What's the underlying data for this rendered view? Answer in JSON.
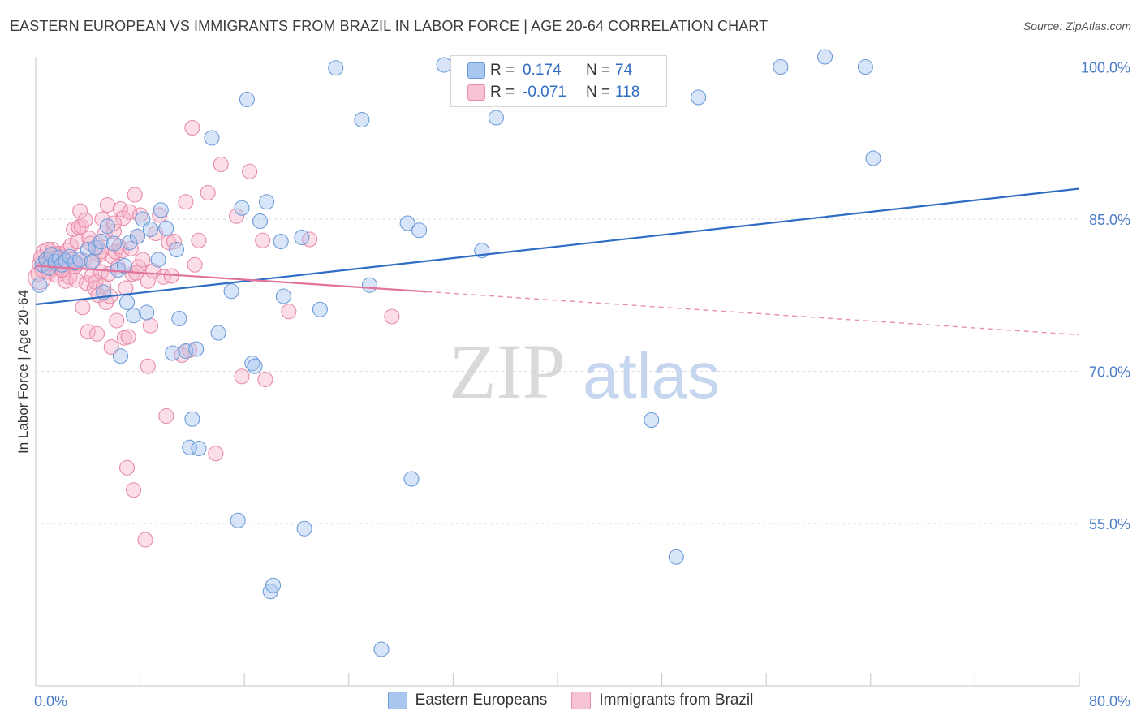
{
  "title": "EASTERN EUROPEAN VS IMMIGRANTS FROM BRAZIL IN LABOR FORCE | AGE 20-64 CORRELATION CHART",
  "source": "Source: ZipAtlas.com",
  "watermark": {
    "zip": "ZIP",
    "atlas": "atlas"
  },
  "legend": {
    "series1": {
      "r_label": "R =",
      "r_value": "0.174",
      "n_label": "N =",
      "n_value": "74"
    },
    "series2": {
      "r_label": "R =",
      "r_value": "-0.071",
      "n_label": "N =",
      "n_value": "118"
    }
  },
  "colors": {
    "blue_fill": "#a9c6ef",
    "blue_stroke": "#6b9bd8",
    "blue_line": "#2f6cc4",
    "pink_fill": "#f6b6c9",
    "pink_stroke": "#e889a8",
    "pink_line": "#e2739a",
    "grid": "#d9d9d9",
    "axis_text": "#4a7cc9"
  },
  "chart_data": {
    "type": "scatter",
    "title": "EASTERN EUROPEAN VS IMMIGRANTS FROM BRAZIL IN LABOR FORCE | AGE 20-64 CORRELATION CHART",
    "xlabel": "",
    "ylabel": "In Labor Force | Age 20-64",
    "xlim": [
      0,
      80
    ],
    "ylim": [
      39,
      101
    ],
    "x_tick_labels": [
      "0.0%",
      "80.0%"
    ],
    "y_ticks": [
      {
        "value": 100,
        "label": "100.0%"
      },
      {
        "value": 85,
        "label": "85.0%"
      },
      {
        "value": 70,
        "label": "70.0%"
      },
      {
        "value": 55,
        "label": "55.0%"
      }
    ],
    "grid": true,
    "series": [
      {
        "name": "Eastern Europeans",
        "color": "#6b9bd8",
        "trend": {
          "x0": 0,
          "y0": 76.6,
          "x1": 80,
          "y1": 88.0,
          "solid_until": 80
        },
        "points": [
          [
            0.3,
            78.5
          ],
          [
            0.5,
            80.5
          ],
          [
            0.8,
            81.0
          ],
          [
            1.0,
            80.2
          ],
          [
            1.2,
            81.5
          ],
          [
            1.5,
            80.8
          ],
          [
            1.8,
            81.2
          ],
          [
            2.0,
            80.5
          ],
          [
            2.3,
            80.9
          ],
          [
            2.6,
            81.3
          ],
          [
            3.0,
            80.7
          ],
          [
            3.4,
            81.0
          ],
          [
            4.0,
            82.0
          ],
          [
            4.3,
            80.8
          ],
          [
            4.6,
            82.2
          ],
          [
            5.0,
            82.8
          ],
          [
            5.2,
            77.8
          ],
          [
            5.5,
            84.3
          ],
          [
            6.0,
            82.6
          ],
          [
            6.3,
            80.0
          ],
          [
            6.5,
            71.5
          ],
          [
            6.8,
            80.4
          ],
          [
            7.0,
            76.8
          ],
          [
            7.2,
            82.7
          ],
          [
            7.5,
            75.5
          ],
          [
            7.8,
            83.3
          ],
          [
            8.2,
            85.0
          ],
          [
            8.5,
            75.8
          ],
          [
            8.8,
            84.0
          ],
          [
            9.4,
            81.0
          ],
          [
            9.6,
            85.9
          ],
          [
            10.0,
            84.1
          ],
          [
            10.5,
            71.8
          ],
          [
            10.8,
            82.0
          ],
          [
            11.0,
            75.2
          ],
          [
            11.5,
            72.0
          ],
          [
            11.8,
            62.5
          ],
          [
            12.0,
            65.3
          ],
          [
            12.3,
            72.2
          ],
          [
            12.5,
            62.4
          ],
          [
            13.5,
            93.0
          ],
          [
            14.0,
            73.8
          ],
          [
            15.0,
            77.9
          ],
          [
            15.5,
            55.3
          ],
          [
            15.8,
            86.1
          ],
          [
            16.2,
            96.8
          ],
          [
            16.6,
            70.8
          ],
          [
            16.8,
            70.5
          ],
          [
            17.2,
            84.8
          ],
          [
            17.7,
            86.7
          ],
          [
            18.0,
            48.3
          ],
          [
            18.2,
            48.9
          ],
          [
            18.8,
            82.8
          ],
          [
            19.0,
            77.4
          ],
          [
            20.4,
            83.2
          ],
          [
            20.6,
            54.5
          ],
          [
            21.8,
            76.1
          ],
          [
            23.0,
            99.9
          ],
          [
            25.0,
            94.8
          ],
          [
            25.6,
            78.5
          ],
          [
            26.5,
            42.6
          ],
          [
            28.5,
            84.6
          ],
          [
            28.8,
            59.4
          ],
          [
            29.4,
            83.9
          ],
          [
            31.3,
            100.2
          ],
          [
            34.2,
            81.9
          ],
          [
            35.3,
            95.0
          ],
          [
            47.2,
            65.2
          ],
          [
            49.1,
            51.7
          ],
          [
            50.8,
            97.0
          ],
          [
            57.1,
            100.0
          ],
          [
            63.6,
            100.0
          ],
          [
            64.2,
            91.0
          ],
          [
            60.5,
            101.0
          ]
        ]
      },
      {
        "name": "Immigrants from Brazil",
        "color": "#e889a8",
        "trend": {
          "x0": 0,
          "y0": 80.4,
          "x1": 80,
          "y1": 73.6,
          "solid_until": 30
        },
        "points": [
          [
            0.2,
            79.6
          ],
          [
            0.3,
            80.6
          ],
          [
            0.4,
            81.2
          ],
          [
            0.5,
            80.0
          ],
          [
            0.6,
            81.8
          ],
          [
            0.7,
            80.3
          ],
          [
            0.8,
            81.0
          ],
          [
            0.9,
            80.6
          ],
          [
            1.0,
            79.8
          ],
          [
            1.1,
            81.4
          ],
          [
            1.2,
            80.1
          ],
          [
            1.3,
            82.0
          ],
          [
            1.4,
            80.8
          ],
          [
            1.5,
            81.1
          ],
          [
            1.6,
            79.5
          ],
          [
            1.7,
            80.4
          ],
          [
            1.8,
            81.6
          ],
          [
            1.9,
            80.2
          ],
          [
            2.0,
            81.3
          ],
          [
            2.1,
            79.9
          ],
          [
            2.2,
            80.7
          ],
          [
            2.3,
            78.9
          ],
          [
            2.4,
            81.9
          ],
          [
            2.5,
            80.5
          ],
          [
            2.6,
            79.3
          ],
          [
            2.7,
            82.4
          ],
          [
            2.8,
            81.0
          ],
          [
            2.9,
            84.0
          ],
          [
            3.0,
            80.3
          ],
          [
            3.1,
            79.0
          ],
          [
            3.2,
            82.8
          ],
          [
            3.3,
            84.2
          ],
          [
            3.4,
            85.8
          ],
          [
            3.5,
            84.3
          ],
          [
            3.6,
            76.3
          ],
          [
            3.7,
            80.9
          ],
          [
            3.8,
            84.9
          ],
          [
            3.9,
            78.7
          ],
          [
            4.0,
            73.9
          ],
          [
            4.1,
            83.1
          ],
          [
            4.2,
            82.6
          ],
          [
            4.3,
            79.4
          ],
          [
            4.4,
            80.9
          ],
          [
            4.5,
            78.2
          ],
          [
            4.6,
            78.8
          ],
          [
            4.7,
            73.7
          ],
          [
            4.8,
            82.2
          ],
          [
            4.9,
            81.5
          ],
          [
            5.0,
            79.8
          ],
          [
            5.1,
            85.0
          ],
          [
            5.2,
            78.4
          ],
          [
            5.3,
            83.6
          ],
          [
            5.4,
            76.8
          ],
          [
            5.5,
            86.4
          ],
          [
            5.6,
            79.6
          ],
          [
            5.7,
            77.4
          ],
          [
            5.8,
            72.4
          ],
          [
            5.9,
            81.3
          ],
          [
            6.0,
            83.8
          ],
          [
            6.1,
            81.8
          ],
          [
            6.2,
            75.0
          ],
          [
            6.3,
            80.3
          ],
          [
            6.4,
            82.3
          ],
          [
            6.5,
            86.0
          ],
          [
            6.6,
            81.9
          ],
          [
            6.7,
            85.1
          ],
          [
            6.8,
            73.3
          ],
          [
            6.9,
            78.2
          ],
          [
            7.0,
            60.5
          ],
          [
            7.1,
            73.4
          ],
          [
            7.2,
            85.7
          ],
          [
            7.3,
            82.1
          ],
          [
            7.4,
            79.6
          ],
          [
            7.5,
            58.3
          ],
          [
            7.6,
            87.4
          ],
          [
            7.7,
            79.7
          ],
          [
            7.8,
            83.3
          ],
          [
            7.9,
            80.3
          ],
          [
            8.0,
            85.4
          ],
          [
            8.2,
            81.0
          ],
          [
            8.4,
            53.4
          ],
          [
            8.6,
            78.9
          ],
          [
            8.8,
            74.5
          ],
          [
            8.6,
            70.5
          ],
          [
            9.0,
            79.9
          ],
          [
            9.2,
            83.6
          ],
          [
            9.5,
            85.4
          ],
          [
            9.8,
            79.3
          ],
          [
            10.0,
            65.6
          ],
          [
            10.2,
            82.7
          ],
          [
            10.4,
            79.4
          ],
          [
            10.6,
            82.8
          ],
          [
            11.2,
            71.6
          ],
          [
            11.5,
            86.7
          ],
          [
            11.8,
            72.1
          ],
          [
            12.0,
            94.0
          ],
          [
            12.2,
            80.5
          ],
          [
            12.5,
            82.9
          ],
          [
            13.2,
            87.6
          ],
          [
            13.8,
            61.9
          ],
          [
            14.2,
            90.4
          ],
          [
            15.4,
            85.3
          ],
          [
            15.8,
            69.5
          ],
          [
            16.4,
            89.7
          ],
          [
            17.4,
            82.9
          ],
          [
            17.6,
            69.2
          ],
          [
            19.4,
            75.9
          ],
          [
            21.0,
            83.0
          ],
          [
            27.3,
            75.4
          ],
          [
            3.2,
            80.6
          ],
          [
            1.4,
            81.6
          ],
          [
            2.0,
            80.0
          ],
          [
            0.9,
            82.0
          ],
          [
            5.0,
            81.8
          ],
          [
            6.0,
            84.6
          ],
          [
            4.8,
            77.5
          ]
        ]
      }
    ]
  }
}
